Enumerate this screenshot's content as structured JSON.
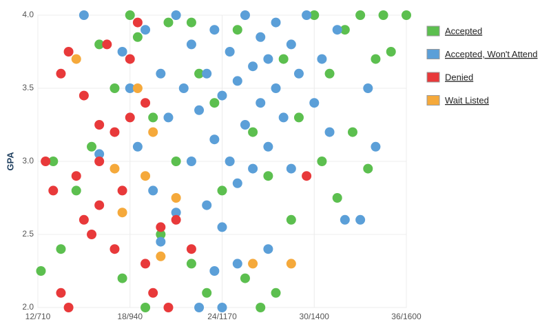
{
  "chart_data": {
    "type": "scatter",
    "y_label": "GPA",
    "xlim": [
      12,
      36
    ],
    "ylim": [
      2,
      4
    ],
    "xticks": [
      {
        "value": 12,
        "label": "12/710"
      },
      {
        "value": 18,
        "label": "18/940"
      },
      {
        "value": 24,
        "label": "24/1170"
      },
      {
        "value": 30,
        "label": "30/1400"
      },
      {
        "value": 36,
        "label": "36/1600"
      }
    ],
    "yticks": [
      {
        "value": 2,
        "label": "2.0"
      },
      2.5,
      {
        "value": 3,
        "label": "3.0"
      },
      3.5,
      {
        "value": 4,
        "label": "4.0"
      }
    ],
    "grid": true,
    "legend": "right",
    "series": [
      {
        "name": "Accepted",
        "color": "#5cbf4f",
        "x": [
          12.2,
          13,
          13.5,
          14.5,
          15.5,
          16,
          17,
          17.5,
          18,
          19,
          20,
          21,
          22,
          22.5,
          23,
          24,
          25,
          25.5,
          26,
          27,
          27.5,
          28,
          28.5,
          29,
          30,
          30.5,
          31,
          31.5,
          32,
          32.5,
          33,
          33.5,
          34,
          34.5,
          35,
          36,
          26.5,
          22,
          23.5,
          19.5,
          18.5,
          20.5
        ],
        "values": [
          2.25,
          3.0,
          2.4,
          2.8,
          3.1,
          3.8,
          3.5,
          2.2,
          4.0,
          2.0,
          2.5,
          3.0,
          2.3,
          3.6,
          2.1,
          2.8,
          3.9,
          2.2,
          3.2,
          2.9,
          2.1,
          3.7,
          2.6,
          3.3,
          4.0,
          3.0,
          3.6,
          2.75,
          3.9,
          3.2,
          4.0,
          2.95,
          3.7,
          4.0,
          3.75,
          4.0,
          2.0,
          3.95,
          3.4,
          3.3,
          3.85,
          3.95
        ]
      },
      {
        "name": "Accepted, Won't Attend",
        "color": "#5b9fd8",
        "x": [
          15,
          16,
          17.5,
          18,
          18.5,
          19,
          19.5,
          20,
          20.5,
          21,
          21,
          21.5,
          22,
          22,
          22.5,
          23,
          23,
          23.5,
          23.5,
          24,
          24,
          24.5,
          24.5,
          25,
          25,
          25.5,
          25.5,
          26,
          26,
          26.5,
          26.5,
          27,
          27,
          27.5,
          27.5,
          28,
          28.5,
          28.5,
          29,
          29.5,
          30,
          30.5,
          31,
          31.5,
          32,
          33,
          33.5,
          34,
          22.5,
          23.5,
          27,
          20,
          24,
          25
        ],
        "values": [
          4.0,
          3.05,
          3.75,
          3.5,
          3.1,
          3.9,
          2.8,
          3.6,
          3.3,
          4.0,
          2.65,
          3.5,
          3.8,
          3.0,
          3.35,
          3.6,
          2.7,
          3.9,
          3.15,
          3.45,
          2.55,
          3.75,
          3.0,
          3.55,
          2.85,
          4.0,
          3.25,
          3.65,
          2.95,
          3.85,
          3.4,
          3.7,
          3.1,
          3.95,
          3.5,
          3.3,
          3.8,
          2.95,
          3.6,
          4.0,
          3.4,
          3.7,
          3.2,
          3.9,
          2.6,
          2.6,
          3.5,
          3.1,
          2.0,
          2.25,
          2.4,
          2.45,
          2.0,
          2.3
        ]
      },
      {
        "name": "Denied",
        "color": "#e8393a",
        "x": [
          12.5,
          13,
          13.5,
          14,
          14.5,
          15,
          15.5,
          16,
          16.5,
          17,
          17.5,
          18,
          18.5,
          19,
          19.5,
          20,
          20.5,
          21,
          14,
          16,
          17,
          13.5,
          15,
          18,
          22,
          29.5,
          16,
          19
        ],
        "values": [
          3.0,
          2.8,
          3.6,
          3.75,
          2.9,
          3.45,
          2.5,
          3.0,
          3.8,
          3.2,
          2.8,
          3.7,
          3.95,
          2.3,
          2.1,
          2.55,
          2.0,
          2.6,
          2.0,
          2.7,
          2.4,
          2.1,
          2.6,
          3.3,
          2.4,
          2.9,
          3.25,
          3.4
        ]
      },
      {
        "name": "Wait Listed",
        "color": "#f5a93b",
        "x": [
          14.5,
          17.5,
          18.5,
          19,
          20,
          21,
          26,
          28.5,
          17,
          19.5
        ],
        "values": [
          3.7,
          2.65,
          3.5,
          2.9,
          2.35,
          2.75,
          2.3,
          2.3,
          2.95,
          3.2
        ]
      }
    ]
  }
}
